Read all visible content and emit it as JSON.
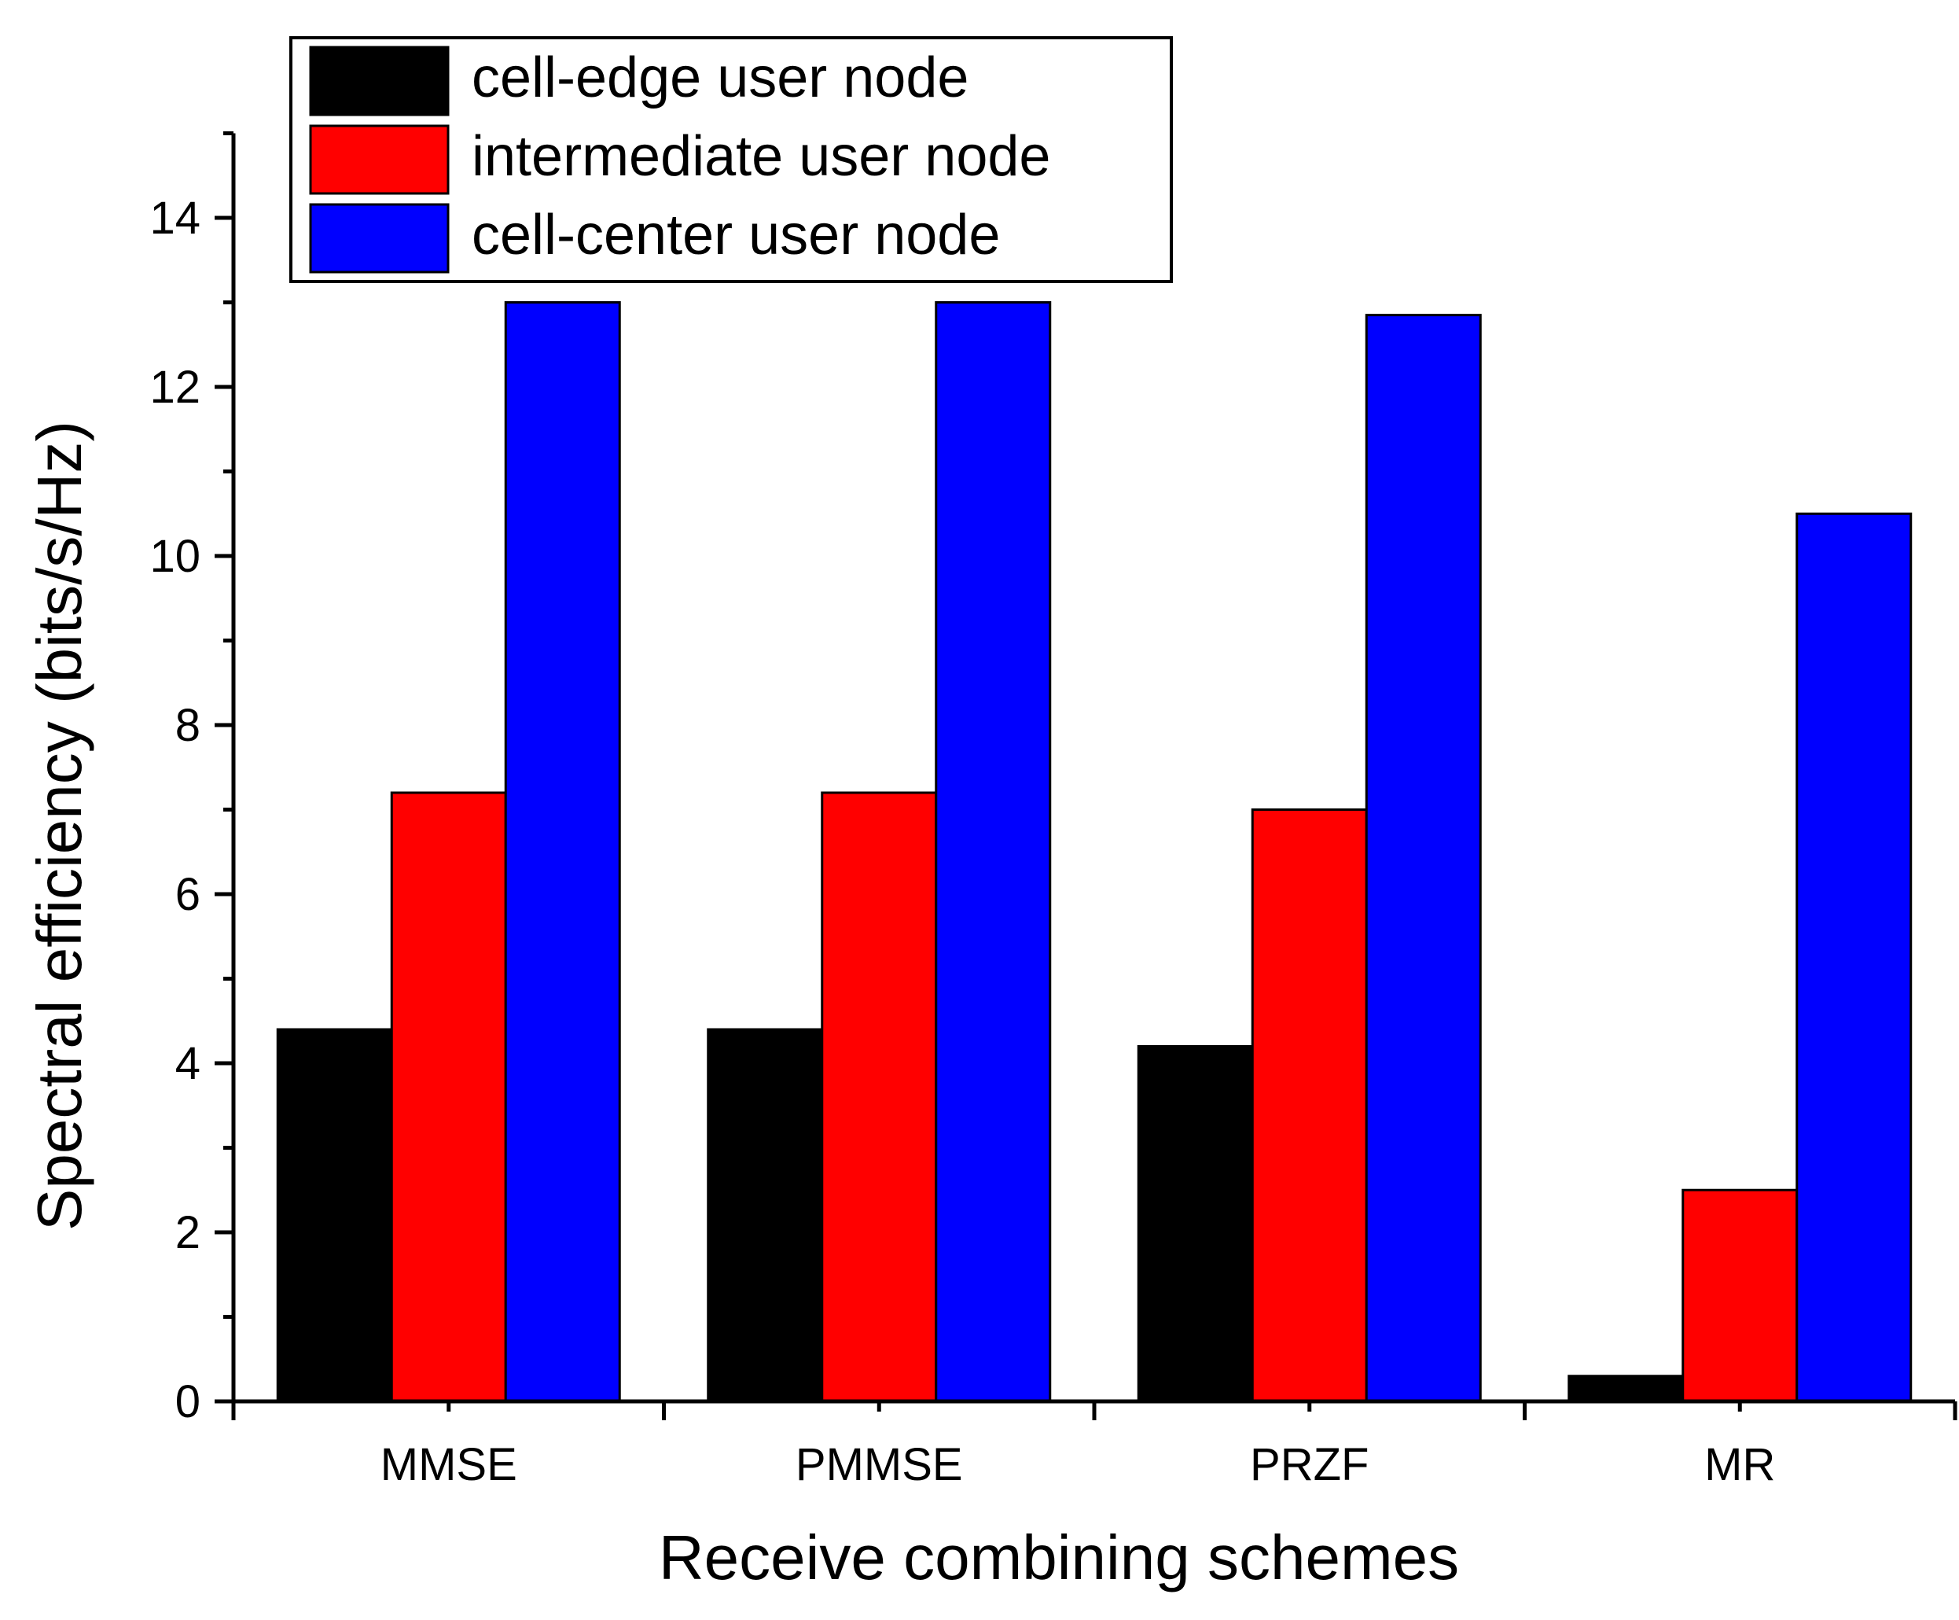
{
  "chart_data": {
    "type": "bar",
    "title": "",
    "xlabel": "Receive combining schemes",
    "ylabel": "Spectral efficiency (bits/s/Hz)",
    "categories": [
      "MMSE",
      "PMMSE",
      "PRZF",
      "MR"
    ],
    "ylim": [
      0,
      15
    ],
    "yticks": [
      0,
      2,
      4,
      6,
      8,
      10,
      12,
      14
    ],
    "yticks_minor": [
      1,
      3,
      5,
      7,
      9,
      11,
      13,
      15
    ],
    "grid": false,
    "legend_position": "top-left",
    "series": [
      {
        "name": "cell-edge user node",
        "color": "#000000",
        "values": [
          4.4,
          4.4,
          4.2,
          0.3
        ]
      },
      {
        "name": "intermediate user node",
        "color": "#ff0000",
        "values": [
          7.2,
          7.2,
          7.0,
          2.5
        ]
      },
      {
        "name": "cell-center user node",
        "color": "#0000ff",
        "values": [
          13.0,
          13.0,
          12.85,
          10.5
        ]
      }
    ]
  }
}
